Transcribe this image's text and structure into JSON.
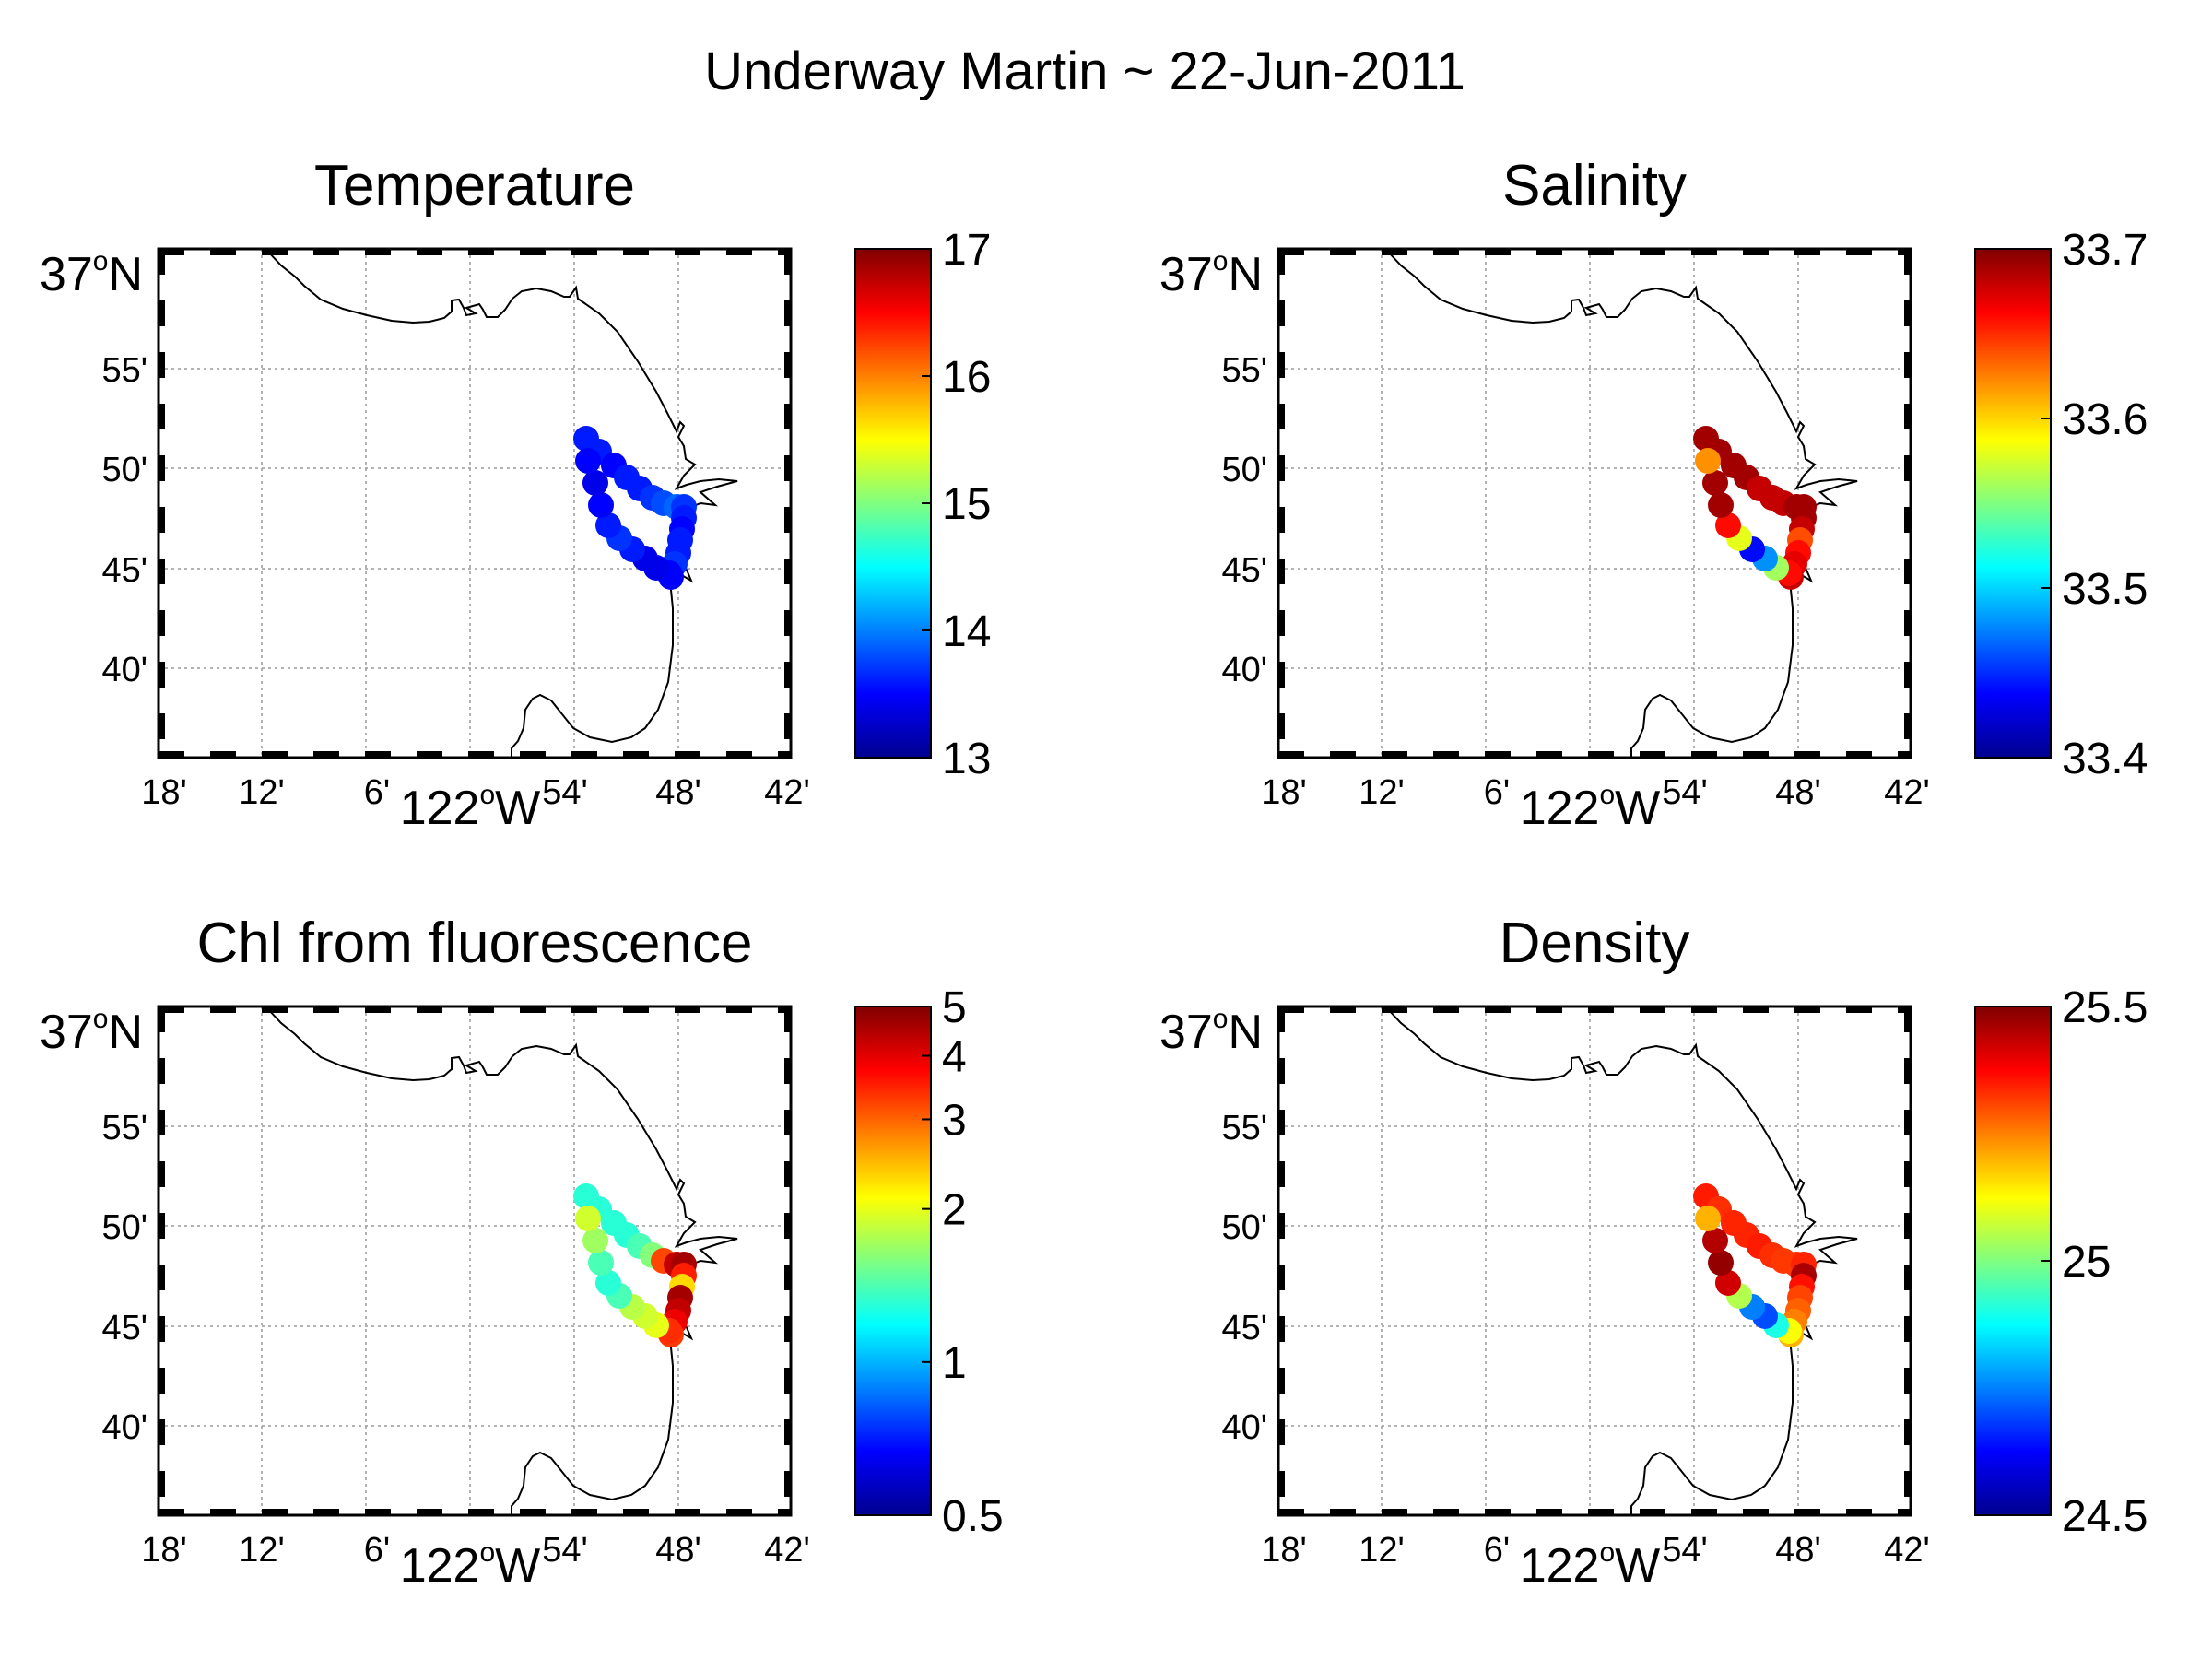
{
  "figure_title": "Underway Martin ~ 22-Jun-2011",
  "map_axes": {
    "lat_labels": [
      "55'",
      "50'",
      "45'",
      "40'"
    ],
    "lat_major": {
      "value": "37",
      "sup": "o",
      "suffix": "N"
    },
    "lon_labels": [
      "18'",
      "12'",
      "6'",
      "54'",
      "48'",
      "42'"
    ],
    "lon_major": {
      "value": "122",
      "sup": "o",
      "suffix": "W"
    }
  },
  "colors": {
    "coast": "#000000",
    "grid": "#9a9a9a",
    "colormap": [
      "#00008f",
      "#0000ff",
      "#0080ff",
      "#00ffff",
      "#80ff80",
      "#ffff00",
      "#ff8000",
      "#ff0000",
      "#800000"
    ]
  },
  "chart_data": [
    {
      "type": "scatter",
      "title": "Temperature",
      "colorbar": {
        "min": 13,
        "max": 17,
        "scale": "linear",
        "ticks": [
          "13",
          "14",
          "15",
          "16",
          "17"
        ]
      },
      "track_values": [
        13.6,
        13.6,
        13.5,
        13.6,
        13.6,
        13.7,
        13.8,
        13.9,
        13.7,
        13.6,
        13.5,
        13.6,
        13.6,
        13.7,
        13.5,
        13.5,
        13.4,
        13.4,
        13.6,
        13.7,
        13.6,
        13.5,
        13.4,
        13.5
      ]
    },
    {
      "type": "scatter",
      "title": "Salinity",
      "colorbar": {
        "min": 33.4,
        "max": 33.7,
        "scale": "linear",
        "ticks": [
          "33.4",
          "33.5",
          "33.6",
          "33.7"
        ]
      },
      "track_values": [
        33.69,
        33.69,
        33.69,
        33.69,
        33.68,
        33.68,
        33.68,
        33.69,
        33.69,
        33.69,
        33.68,
        33.64,
        33.66,
        33.67,
        33.68,
        33.66,
        33.56,
        33.48,
        33.44,
        33.58,
        33.66,
        33.69,
        33.69,
        33.62
      ]
    },
    {
      "type": "scatter",
      "title": "Chl from fluorescence",
      "colorbar": {
        "min": 0.5,
        "max": 5,
        "scale": "log",
        "ticks": [
          "0.5",
          "1",
          "2",
          "3",
          "4",
          "5"
        ]
      },
      "track_values": [
        1.3,
        1.3,
        1.3,
        1.3,
        1.4,
        1.6,
        3.2,
        4.3,
        4.6,
        3.5,
        2.3,
        4.6,
        4.3,
        3.9,
        3.3,
        3.4,
        2.0,
        1.9,
        1.8,
        1.4,
        1.3,
        1.4,
        1.7,
        1.9
      ]
    },
    {
      "type": "scatter",
      "title": "Density",
      "colorbar": {
        "min": 24.5,
        "max": 25.5,
        "scale": "linear",
        "ticks": [
          "24.5",
          "25",
          "25.5"
        ]
      },
      "track_values": [
        25.35,
        25.33,
        25.34,
        25.34,
        25.35,
        25.33,
        25.32,
        25.32,
        25.34,
        25.46,
        25.36,
        25.31,
        25.28,
        25.25,
        25.2,
        25.12,
        24.9,
        24.7,
        24.75,
        25.05,
        25.42,
        25.48,
        25.45,
        25.2
      ]
    }
  ]
}
